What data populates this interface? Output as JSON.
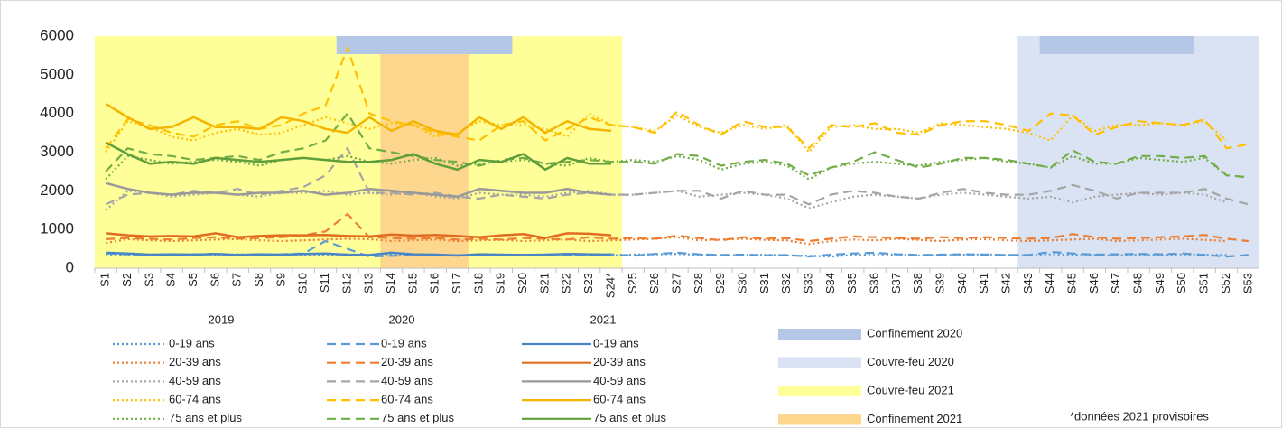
{
  "chart_data": {
    "type": "line",
    "categories": [
      "S1",
      "S2",
      "S3",
      "S4",
      "S5",
      "S6",
      "S7",
      "S8",
      "S9",
      "S10",
      "S11",
      "S12",
      "S13",
      "S14",
      "S15",
      "S16",
      "S17",
      "S18",
      "S19",
      "S20",
      "S21",
      "S22",
      "S23",
      "S24*",
      "S25",
      "S26",
      "S27",
      "S28",
      "S29",
      "S30",
      "S31",
      "S32",
      "S33",
      "S34",
      "S35",
      "S36",
      "S37",
      "S38",
      "S39",
      "S40",
      "S41",
      "S42",
      "S43",
      "S44",
      "S45",
      "S46",
      "S47",
      "S48",
      "S49",
      "S50",
      "S51",
      "S52",
      "S53"
    ],
    "ylim": [
      0,
      6000
    ],
    "yticks": [
      0,
      1000,
      2000,
      3000,
      4000,
      5000,
      6000
    ],
    "grid": false,
    "regions": [
      {
        "name": "Confinement 2020",
        "color": "#b4c7e7",
        "spans": [
          [
            "S12",
            "S19"
          ],
          [
            "S44",
            "S50"
          ]
        ]
      },
      {
        "name": "Couvre-feu 2020",
        "color": "#dae3f3",
        "spans": [
          [
            "S43",
            "S53"
          ]
        ]
      },
      {
        "name": "Couvre-feu 2021",
        "color": "#ffff99",
        "spans": [
          [
            "S1",
            "S24*"
          ]
        ]
      },
      {
        "name": "Confinement 2021",
        "color": "#fdd78e",
        "spans": [
          [
            "S14",
            "S17"
          ]
        ]
      }
    ],
    "note": "*données 2021 provisoires",
    "series": [
      {
        "year": "2019",
        "name": "0-19 ans",
        "color": "#5b9bd5",
        "dash": "dotted",
        "values": [
          340,
          350,
          330,
          360,
          350,
          340,
          360,
          350,
          330,
          340,
          350,
          340,
          330,
          350,
          360,
          340,
          320,
          350,
          340,
          330,
          350,
          360,
          340,
          330,
          350,
          360,
          370,
          350,
          330,
          340,
          350,
          330,
          320,
          300,
          340,
          360,
          350,
          330,
          340,
          350,
          360,
          340,
          330,
          360,
          350,
          340,
          330,
          350,
          340,
          360,
          350,
          340,
          null
        ]
      },
      {
        "year": "2019",
        "name": "20-39 ans",
        "color": "#ed7d31",
        "dash": "dotted",
        "values": [
          650,
          750,
          720,
          700,
          720,
          740,
          750,
          720,
          700,
          720,
          740,
          760,
          750,
          700,
          720,
          740,
          700,
          720,
          730,
          700,
          720,
          740,
          700,
          720,
          740,
          760,
          800,
          720,
          740,
          760,
          730,
          720,
          620,
          700,
          740,
          720,
          760,
          730,
          700,
          740,
          750,
          720,
          700,
          720,
          740,
          760,
          700,
          720,
          740,
          760,
          730,
          700,
          null
        ]
      },
      {
        "year": "2019",
        "name": "40-59 ans",
        "color": "#a5a5a5",
        "dash": "dotted",
        "values": [
          1500,
          2000,
          1950,
          1850,
          1900,
          1950,
          1900,
          1850,
          1950,
          1950,
          2000,
          1900,
          1950,
          1900,
          1950,
          1850,
          1800,
          1950,
          1900,
          1900,
          1850,
          1950,
          2000,
          1900,
          1900,
          1950,
          2000,
          1850,
          1900,
          1950,
          1900,
          1800,
          1550,
          1700,
          1850,
          1900,
          1850,
          1800,
          1900,
          1950,
          1900,
          1850,
          1800,
          1850,
          1700,
          1850,
          1900,
          1950,
          1900,
          1950,
          1900,
          1700,
          null
        ]
      },
      {
        "year": "2019",
        "name": "60-74 ans",
        "color": "#ffc000",
        "dash": "dotted",
        "values": [
          3000,
          3800,
          3650,
          3400,
          3300,
          3500,
          3600,
          3450,
          3500,
          3700,
          3900,
          3750,
          3600,
          3750,
          3700,
          3400,
          3500,
          3800,
          3700,
          3700,
          3600,
          3400,
          4000,
          3700,
          3650,
          3550,
          3950,
          3650,
          3500,
          3700,
          3600,
          3700,
          3000,
          3650,
          3700,
          3600,
          3600,
          3500,
          3750,
          3700,
          3650,
          3600,
          3500,
          3300,
          3950,
          3550,
          3700,
          3700,
          3750,
          3700,
          3800,
          3300,
          null
        ]
      },
      {
        "year": "2019",
        "name": "75 ans et plus",
        "color": "#70ad47",
        "dash": "dotted",
        "values": [
          2300,
          2900,
          2800,
          2700,
          2750,
          2800,
          2750,
          2650,
          2800,
          2850,
          2800,
          2900,
          2750,
          2700,
          2800,
          2850,
          2650,
          2700,
          2750,
          2800,
          2700,
          2650,
          2850,
          2750,
          2800,
          2750,
          2900,
          2800,
          2550,
          2700,
          2750,
          2650,
          2300,
          2600,
          2700,
          2750,
          2700,
          2650,
          2750,
          2800,
          2850,
          2750,
          2700,
          2600,
          2900,
          2700,
          2700,
          2850,
          2800,
          2750,
          2850,
          2400,
          null
        ]
      },
      {
        "year": "2020",
        "name": "0-19 ans",
        "color": "#5b9bd5",
        "dash": "dashed",
        "values": [
          380,
          360,
          350,
          340,
          360,
          370,
          350,
          340,
          360,
          380,
          700,
          500,
          300,
          320,
          330,
          350,
          330,
          340,
          330,
          340,
          350,
          330,
          340,
          360,
          320,
          370,
          400,
          360,
          340,
          350,
          330,
          340,
          300,
          350,
          380,
          400,
          360,
          340,
          350,
          360,
          350,
          340,
          340,
          420,
          380,
          350,
          360,
          370,
          360,
          380,
          340,
          300,
          340
        ]
      },
      {
        "year": "2020",
        "name": "20-39 ans",
        "color": "#ed7d31",
        "dash": "dashed",
        "values": [
          750,
          780,
          760,
          740,
          780,
          800,
          760,
          780,
          800,
          850,
          950,
          1400,
          800,
          780,
          760,
          780,
          740,
          760,
          740,
          780,
          760,
          740,
          800,
          760,
          780,
          760,
          840,
          780,
          720,
          800,
          760,
          780,
          700,
          760,
          820,
          800,
          780,
          760,
          800,
          780,
          800,
          780,
          760,
          780,
          880,
          800,
          760,
          780,
          800,
          820,
          860,
          760,
          700
        ]
      },
      {
        "year": "2020",
        "name": "40-59 ans",
        "color": "#a5a5a5",
        "dash": "dashed",
        "values": [
          1650,
          1900,
          1950,
          1900,
          2000,
          1950,
          2050,
          1900,
          2000,
          2100,
          2400,
          3100,
          1950,
          1950,
          1900,
          1950,
          1850,
          1800,
          1900,
          1850,
          1800,
          1900,
          1950,
          1900,
          1900,
          1950,
          2000,
          2000,
          1800,
          2000,
          1900,
          1900,
          1650,
          1900,
          2000,
          1950,
          1850,
          1800,
          1950,
          2050,
          1950,
          1900,
          1900,
          2000,
          2150,
          2000,
          1800,
          1950,
          1950,
          1950,
          2050,
          1800,
          1650
        ]
      },
      {
        "year": "2020",
        "name": "60-74 ans",
        "color": "#ffc000",
        "dash": "dashed",
        "values": [
          3100,
          3850,
          3700,
          3500,
          3400,
          3700,
          3800,
          3600,
          3700,
          4000,
          4200,
          5700,
          4000,
          3800,
          3700,
          3500,
          3400,
          3300,
          3700,
          3800,
          3300,
          3600,
          3900,
          3700,
          3650,
          3500,
          4050,
          3700,
          3450,
          3800,
          3650,
          3650,
          3100,
          3700,
          3650,
          3750,
          3500,
          3450,
          3700,
          3800,
          3800,
          3700,
          3550,
          4000,
          3950,
          3450,
          3650,
          3800,
          3750,
          3700,
          3850,
          3100,
          3200
        ]
      },
      {
        "year": "2020",
        "name": "75 ans et plus",
        "color": "#70ad47",
        "dash": "dashed",
        "values": [
          2500,
          3100,
          2950,
          2900,
          2800,
          2850,
          2900,
          2800,
          3000,
          3100,
          3300,
          4000,
          3100,
          3000,
          2900,
          2800,
          2750,
          2650,
          2800,
          2850,
          2700,
          2750,
          2800,
          2750,
          2750,
          2700,
          2950,
          2900,
          2650,
          2750,
          2800,
          2700,
          2400,
          2600,
          2750,
          3000,
          2800,
          2600,
          2700,
          2850,
          2850,
          2800,
          2700,
          2600,
          3050,
          2750,
          2700,
          2900,
          2900,
          2850,
          2900,
          2400,
          2350
        ]
      },
      {
        "year": "2021",
        "name": "0-19 ans",
        "color": "#4a86c5",
        "dash": "solid",
        "values": [
          400,
          380,
          350,
          360,
          350,
          370,
          340,
          360,
          350,
          370,
          380,
          350,
          340,
          400,
          360,
          350,
          330,
          360,
          350,
          340,
          350,
          370,
          360,
          350,
          null,
          null,
          null,
          null,
          null,
          null,
          null,
          null,
          null,
          null,
          null,
          null,
          null,
          null,
          null,
          null,
          null,
          null,
          null,
          null,
          null,
          null,
          null,
          null,
          null,
          null,
          null,
          null,
          null
        ]
      },
      {
        "year": "2021",
        "name": "20-39 ans",
        "color": "#e06c1f",
        "dash": "solid",
        "values": [
          900,
          850,
          820,
          830,
          820,
          900,
          800,
          830,
          850,
          850,
          860,
          830,
          820,
          870,
          840,
          860,
          830,
          800,
          850,
          880,
          780,
          900,
          890,
          850,
          null,
          null,
          null,
          null,
          null,
          null,
          null,
          null,
          null,
          null,
          null,
          null,
          null,
          null,
          null,
          null,
          null,
          null,
          null,
          null,
          null,
          null,
          null,
          null,
          null,
          null,
          null,
          null,
          null
        ]
      },
      {
        "year": "2021",
        "name": "40-59 ans",
        "color": "#999999",
        "dash": "solid",
        "values": [
          2200,
          2050,
          1950,
          1900,
          1950,
          1950,
          1900,
          1950,
          1950,
          2000,
          1900,
          1950,
          2050,
          2000,
          1950,
          1900,
          1850,
          2050,
          2000,
          1950,
          1950,
          2050,
          1950,
          1900,
          null,
          null,
          null,
          null,
          null,
          null,
          null,
          null,
          null,
          null,
          null,
          null,
          null,
          null,
          null,
          null,
          null,
          null,
          null,
          null,
          null,
          null,
          null,
          null,
          null,
          null,
          null,
          null,
          null
        ]
      },
      {
        "year": "2021",
        "name": "60-74 ans",
        "color": "#f5b400",
        "dash": "solid",
        "values": [
          4250,
          3900,
          3600,
          3650,
          3900,
          3650,
          3650,
          3600,
          3900,
          3800,
          3600,
          3500,
          3900,
          3550,
          3800,
          3550,
          3450,
          3900,
          3600,
          3900,
          3500,
          3800,
          3600,
          3550,
          null,
          null,
          null,
          null,
          null,
          null,
          null,
          null,
          null,
          null,
          null,
          null,
          null,
          null,
          null,
          null,
          null,
          null,
          null,
          null,
          null,
          null,
          null,
          null,
          null,
          null,
          null,
          null,
          null
        ]
      },
      {
        "year": "2021",
        "name": "75 ans et plus",
        "color": "#5f9e3a",
        "dash": "solid",
        "values": [
          3250,
          2950,
          2700,
          2750,
          2700,
          2850,
          2800,
          2750,
          2800,
          2850,
          2800,
          2750,
          2750,
          2800,
          2950,
          2700,
          2550,
          2800,
          2750,
          2950,
          2550,
          2850,
          2700,
          2700,
          null,
          null,
          null,
          null,
          null,
          null,
          null,
          null,
          null,
          null,
          null,
          null,
          null,
          null,
          null,
          null,
          null,
          null,
          null,
          null,
          null,
          null,
          null,
          null,
          null,
          null,
          null,
          null,
          null
        ]
      }
    ]
  }
}
